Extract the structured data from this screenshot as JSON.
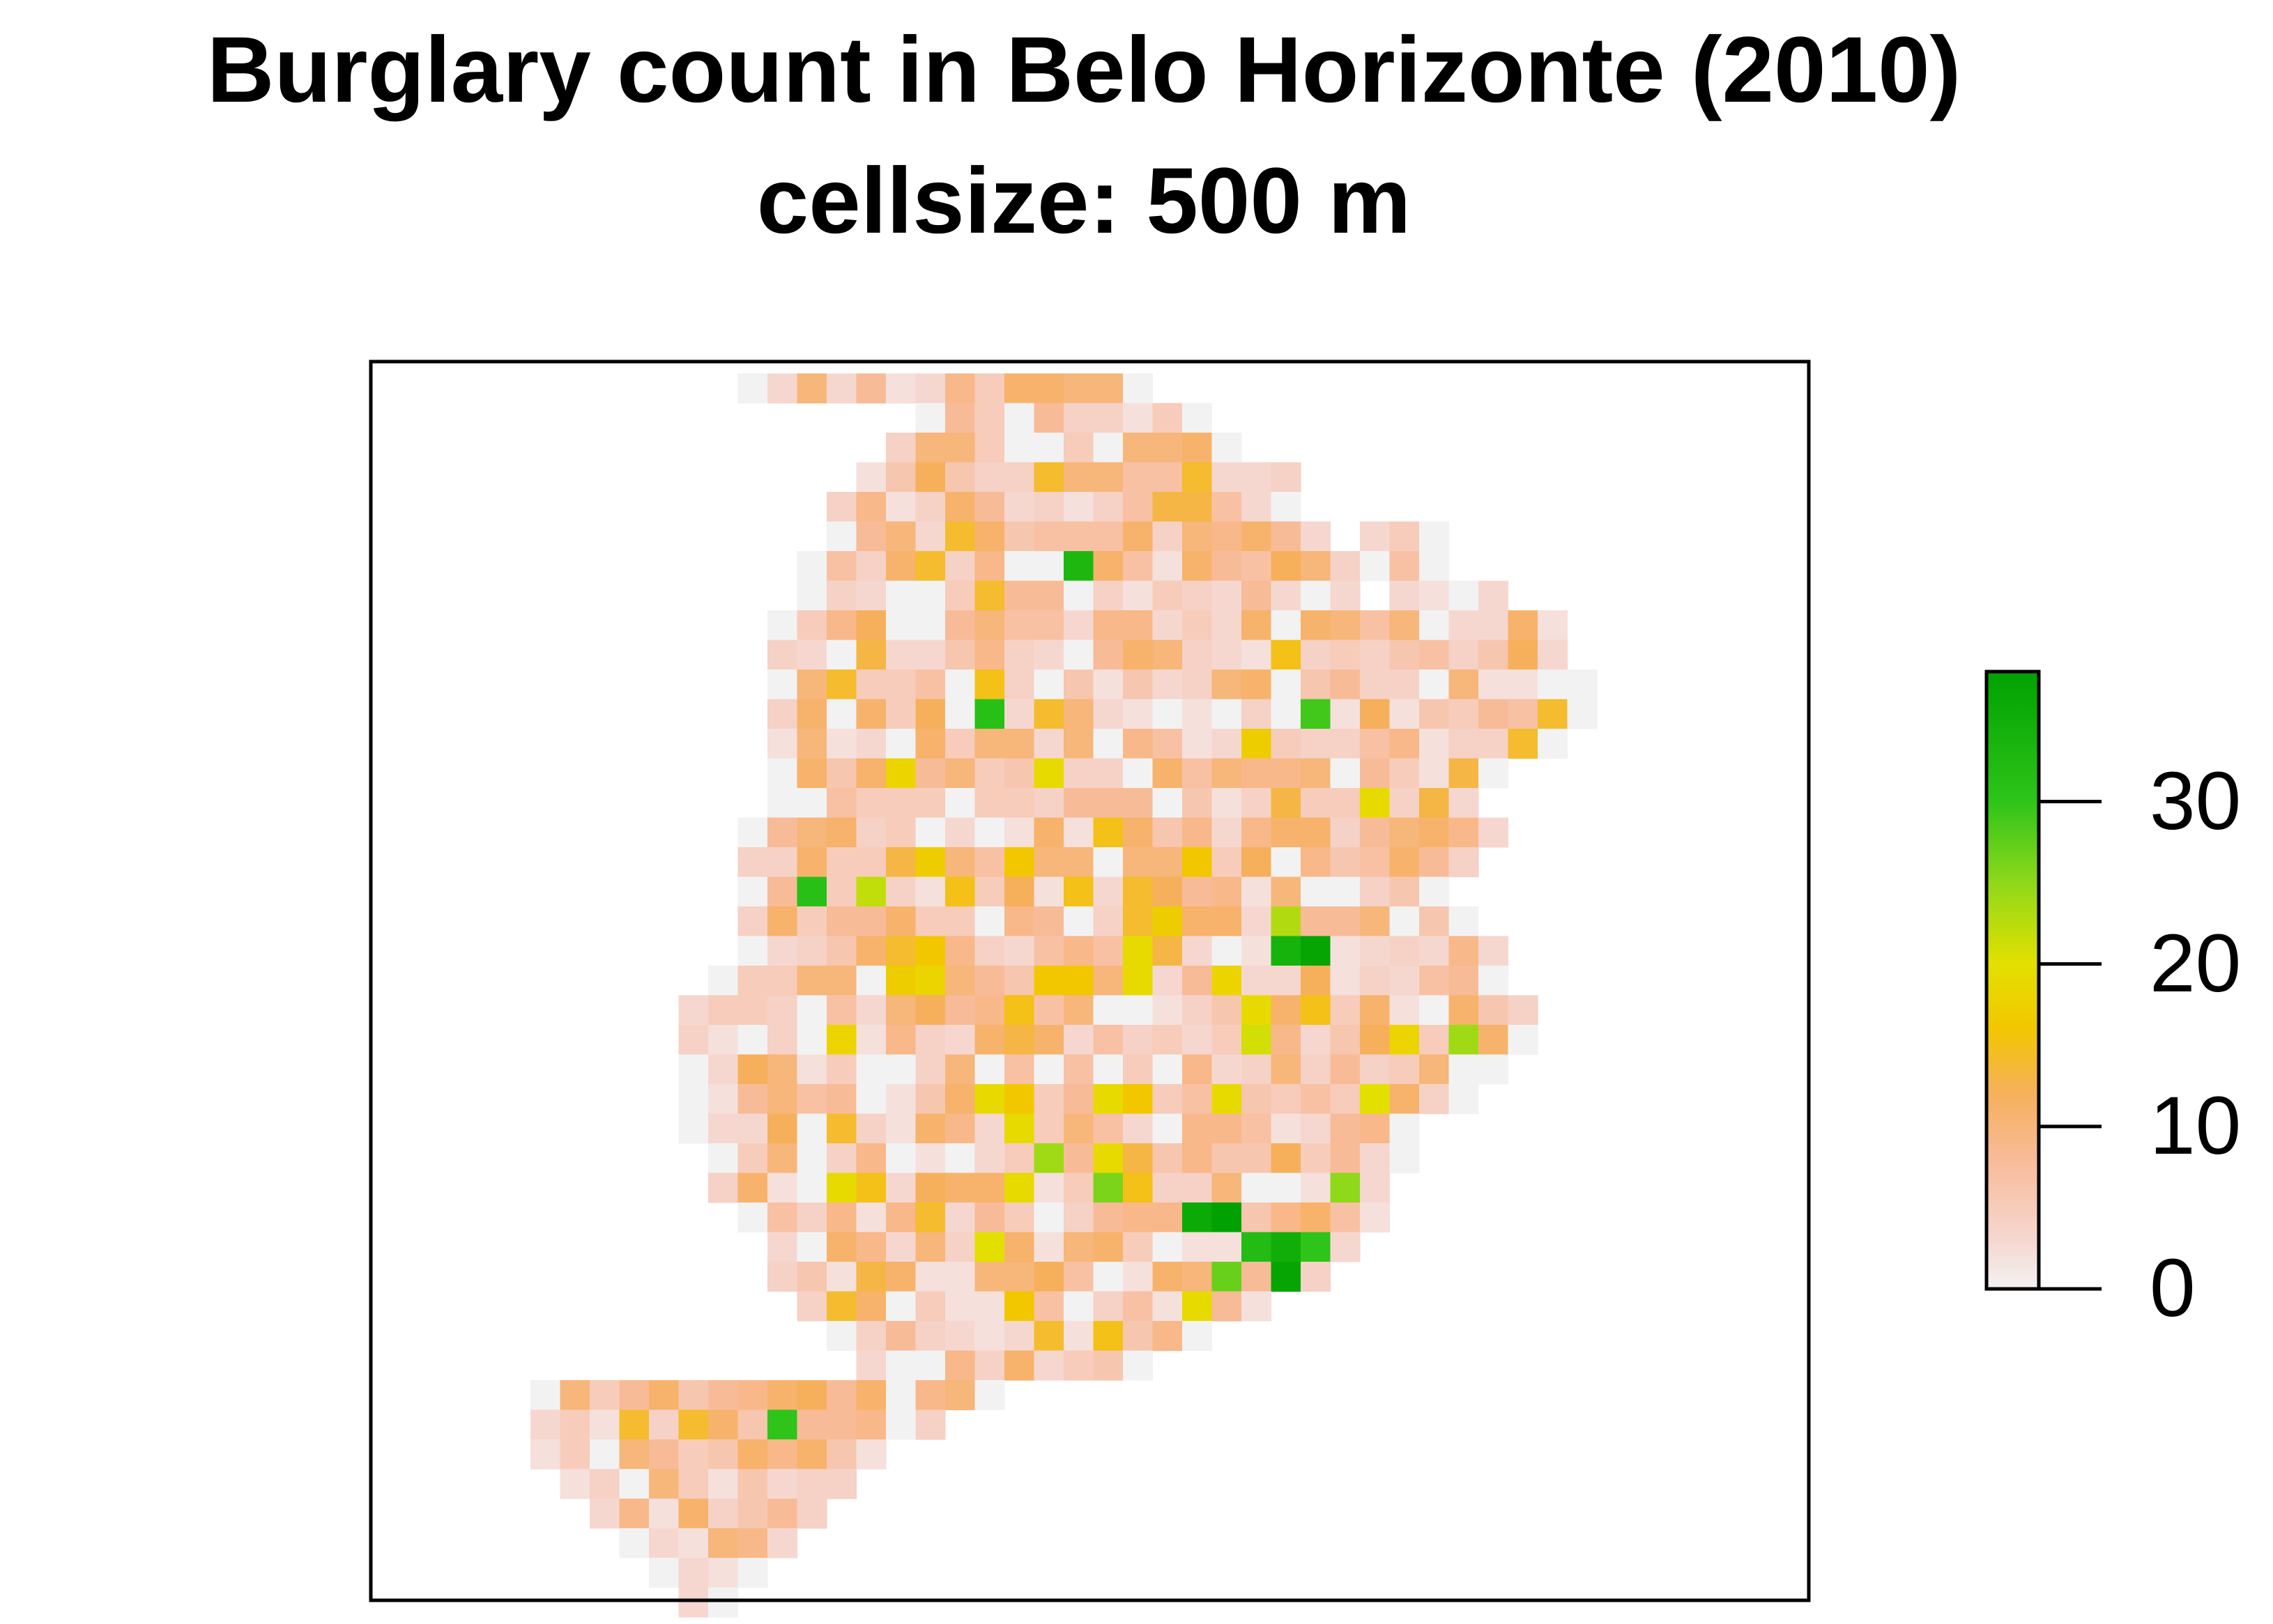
{
  "chart_data": {
    "type": "heatmap",
    "title": "Burglary count in Belo Horizonte (2010)",
    "subtitle": "cellsize: 500 m",
    "xlabel": "",
    "ylabel": "",
    "legend": {
      "placement": "right",
      "range": [
        0,
        38
      ],
      "ticks": [
        0,
        10,
        20,
        30
      ],
      "tick_labels": [
        "0",
        "10",
        "20",
        "30"
      ],
      "palette": [
        {
          "value": 0,
          "color": "#f2f2f2"
        },
        {
          "value": 3,
          "color": "#f6d7d0"
        },
        {
          "value": 8,
          "color": "#f8bb98"
        },
        {
          "value": 12,
          "color": "#f6b05c"
        },
        {
          "value": 16,
          "color": "#f2c700"
        },
        {
          "value": 20,
          "color": "#e3e000"
        },
        {
          "value": 25,
          "color": "#8fd81a"
        },
        {
          "value": 30,
          "color": "#2ec41a"
        },
        {
          "value": 38,
          "color": "#00a100"
        }
      ]
    },
    "grid_cols": 42,
    "grid_rows": 42,
    "hotspots": [
      {
        "col": 20,
        "row": 6,
        "value": 33
      },
      {
        "col": 17,
        "row": 11,
        "value": 31
      },
      {
        "col": 28,
        "row": 11,
        "value": 29
      },
      {
        "col": 11,
        "row": 17,
        "value": 31
      },
      {
        "col": 13,
        "row": 17,
        "value": 22
      },
      {
        "col": 27,
        "row": 18,
        "value": 23
      },
      {
        "col": 27,
        "row": 19,
        "value": 34
      },
      {
        "col": 28,
        "row": 19,
        "value": 37
      },
      {
        "col": 33,
        "row": 22,
        "value": 24
      },
      {
        "col": 21,
        "row": 27,
        "value": 26
      },
      {
        "col": 19,
        "row": 26,
        "value": 24
      },
      {
        "col": 24,
        "row": 28,
        "value": 36
      },
      {
        "col": 25,
        "row": 28,
        "value": 38
      },
      {
        "col": 26,
        "row": 29,
        "value": 32
      },
      {
        "col": 27,
        "row": 29,
        "value": 35
      },
      {
        "col": 27,
        "row": 30,
        "value": 37
      },
      {
        "col": 28,
        "row": 29,
        "value": 30
      },
      {
        "col": 25,
        "row": 30,
        "value": 27
      },
      {
        "col": 29,
        "row": 27,
        "value": 25
      },
      {
        "col": 10,
        "row": 35,
        "value": 30
      },
      {
        "col": 22,
        "row": 20,
        "value": 19
      },
      {
        "col": 26,
        "row": 22,
        "value": 21
      },
      {
        "col": 30,
        "row": 24,
        "value": 20
      },
      {
        "col": 17,
        "row": 29,
        "value": 20
      }
    ]
  }
}
